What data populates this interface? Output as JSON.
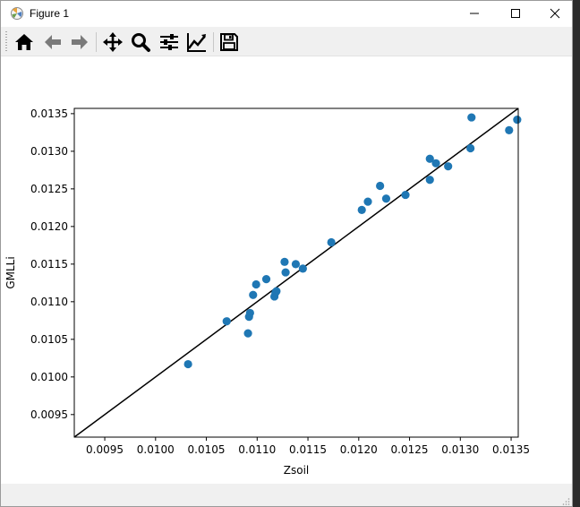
{
  "window": {
    "title": "Figure 1",
    "controls": [
      "minimize-icon",
      "maximize-icon",
      "close-icon"
    ]
  },
  "toolbar": {
    "buttons": [
      {
        "name": "home-button",
        "icon": "home-icon"
      },
      {
        "name": "back-button",
        "icon": "arrow-left-icon"
      },
      {
        "name": "forward-button",
        "icon": "arrow-right-icon"
      },
      {
        "name": "pan-button",
        "icon": "move-icon"
      },
      {
        "name": "zoom-button",
        "icon": "magnifier-icon"
      },
      {
        "name": "configure-subplots-button",
        "icon": "sliders-icon"
      },
      {
        "name": "edit-axes-button",
        "icon": "line-chart-icon"
      },
      {
        "name": "save-button",
        "icon": "floppy-disk-icon"
      }
    ]
  },
  "chart_data": {
    "type": "scatter",
    "title": "",
    "xlabel": "Zsoil",
    "ylabel": "GMLLi",
    "xlim": [
      0.0092,
      0.01357
    ],
    "ylim": [
      0.0092,
      0.01357
    ],
    "x_ticks": [
      0.0095,
      0.01,
      0.0105,
      0.011,
      0.0115,
      0.012,
      0.0125,
      0.013,
      0.0135
    ],
    "x_tick_labels": [
      "0.0095",
      "0.0100",
      "0.0105",
      "0.0110",
      "0.0115",
      "0.0120",
      "0.0125",
      "0.0130",
      "0.0135"
    ],
    "y_ticks": [
      0.0095,
      0.01,
      0.0105,
      0.011,
      0.0115,
      0.012,
      0.0125,
      0.013,
      0.0135
    ],
    "y_tick_labels": [
      "0.0095",
      "0.0100",
      "0.0105",
      "0.0110",
      "0.0115",
      "0.0120",
      "0.0125",
      "0.0130",
      "0.0135"
    ],
    "grid": false,
    "marker_color": "#1f77b4",
    "line_color": "#000000",
    "line": {
      "x": [
        0.0092,
        0.01357
      ],
      "y": [
        0.0092,
        0.01357
      ]
    },
    "points": [
      {
        "x": 0.01032,
        "y": 0.01017
      },
      {
        "x": 0.0107,
        "y": 0.01074
      },
      {
        "x": 0.01091,
        "y": 0.01058
      },
      {
        "x": 0.01092,
        "y": 0.0108
      },
      {
        "x": 0.01093,
        "y": 0.01085
      },
      {
        "x": 0.01096,
        "y": 0.01109
      },
      {
        "x": 0.01099,
        "y": 0.01123
      },
      {
        "x": 0.01109,
        "y": 0.0113
      },
      {
        "x": 0.01117,
        "y": 0.01107
      },
      {
        "x": 0.01118,
        "y": 0.01112
      },
      {
        "x": 0.01119,
        "y": 0.01114
      },
      {
        "x": 0.01127,
        "y": 0.01153
      },
      {
        "x": 0.01128,
        "y": 0.01139
      },
      {
        "x": 0.01138,
        "y": 0.0115
      },
      {
        "x": 0.01145,
        "y": 0.01144
      },
      {
        "x": 0.01173,
        "y": 0.01179
      },
      {
        "x": 0.01203,
        "y": 0.01222
      },
      {
        "x": 0.01209,
        "y": 0.01233
      },
      {
        "x": 0.01221,
        "y": 0.01254
      },
      {
        "x": 0.01227,
        "y": 0.01237
      },
      {
        "x": 0.01246,
        "y": 0.01242
      },
      {
        "x": 0.0127,
        "y": 0.0129
      },
      {
        "x": 0.0127,
        "y": 0.01262
      },
      {
        "x": 0.01276,
        "y": 0.01284
      },
      {
        "x": 0.01288,
        "y": 0.0128
      },
      {
        "x": 0.0131,
        "y": 0.01304
      },
      {
        "x": 0.01311,
        "y": 0.01345
      },
      {
        "x": 0.01348,
        "y": 0.01328
      },
      {
        "x": 0.01356,
        "y": 0.01342
      }
    ]
  }
}
